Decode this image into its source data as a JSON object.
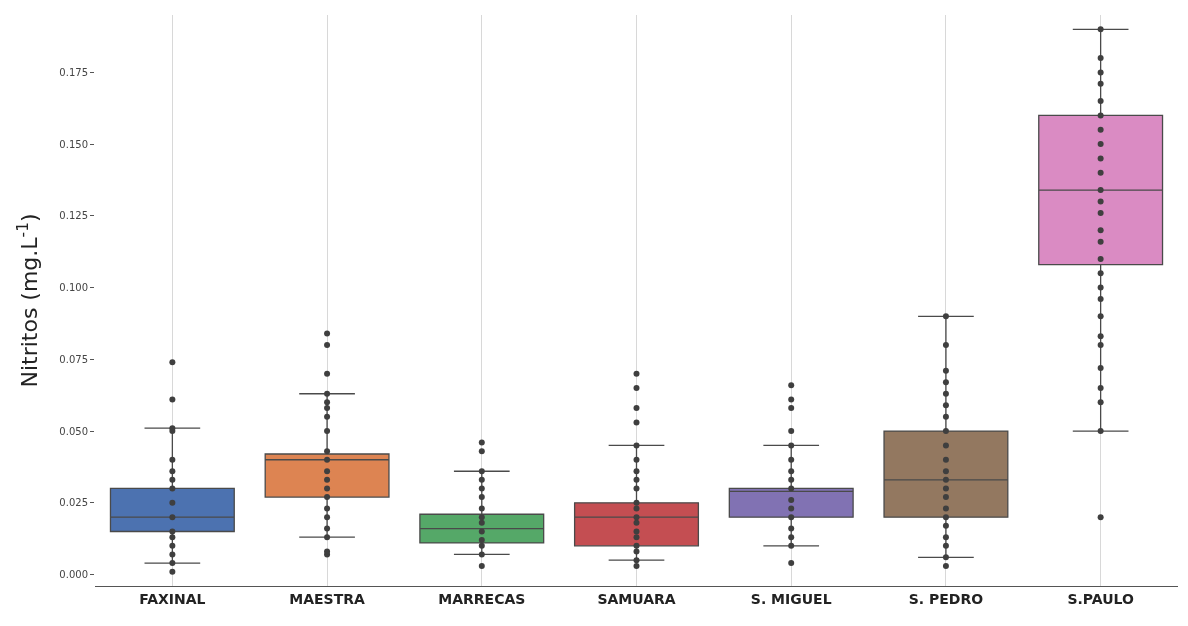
{
  "chart_data": {
    "type": "box",
    "ylabel": "Nitritos (mg.L$^{-1}$)",
    "categories": [
      "FAXINAL",
      "MAESTRA",
      "MARRECAS",
      "SAMUARA",
      "S. MIGUEL",
      "S. PEDRO",
      "S.PAULO"
    ],
    "colors": [
      "#4c72b0",
      "#dd8452",
      "#55a868",
      "#c44e52",
      "#8172b3",
      "#937860",
      "#da8bc3"
    ],
    "boxes": [
      {
        "low": 0.004,
        "q1": 0.015,
        "median": 0.02,
        "q3": 0.03,
        "high": 0.051
      },
      {
        "low": 0.013,
        "q1": 0.027,
        "median": 0.04,
        "q3": 0.042,
        "high": 0.063
      },
      {
        "low": 0.007,
        "q1": 0.011,
        "median": 0.016,
        "q3": 0.021,
        "high": 0.036
      },
      {
        "low": 0.005,
        "q1": 0.01,
        "median": 0.02,
        "q3": 0.025,
        "high": 0.045
      },
      {
        "low": 0.01,
        "q1": 0.02,
        "median": 0.029,
        "q3": 0.03,
        "high": 0.045
      },
      {
        "low": 0.006,
        "q1": 0.02,
        "median": 0.033,
        "q3": 0.05,
        "high": 0.09
      },
      {
        "low": 0.05,
        "q1": 0.108,
        "median": 0.134,
        "q3": 0.16,
        "high": 0.19
      }
    ],
    "series": [
      {
        "type": "scatter",
        "color": "#3f3f3f",
        "x": [
          "FAXINAL",
          "FAXINAL",
          "FAXINAL",
          "FAXINAL",
          "FAXINAL",
          "FAXINAL",
          "FAXINAL",
          "FAXINAL",
          "FAXINAL",
          "FAXINAL",
          "FAXINAL",
          "FAXINAL",
          "FAXINAL",
          "FAXINAL",
          "FAXINAL",
          "FAXINAL",
          "MAESTRA",
          "MAESTRA",
          "MAESTRA",
          "MAESTRA",
          "MAESTRA",
          "MAESTRA",
          "MAESTRA",
          "MAESTRA",
          "MAESTRA",
          "MAESTRA",
          "MAESTRA",
          "MAESTRA",
          "MAESTRA",
          "MAESTRA",
          "MAESTRA",
          "MAESTRA",
          "MAESTRA",
          "MAESTRA",
          "MAESTRA",
          "MAESTRA",
          "MARRECAS",
          "MARRECAS",
          "MARRECAS",
          "MARRECAS",
          "MARRECAS",
          "MARRECAS",
          "MARRECAS",
          "MARRECAS",
          "MARRECAS",
          "MARRECAS",
          "MARRECAS",
          "MARRECAS",
          "MARRECAS",
          "MARRECAS",
          "SAMUARA",
          "SAMUARA",
          "SAMUARA",
          "SAMUARA",
          "SAMUARA",
          "SAMUARA",
          "SAMUARA",
          "SAMUARA",
          "SAMUARA",
          "SAMUARA",
          "SAMUARA",
          "SAMUARA",
          "SAMUARA",
          "SAMUARA",
          "SAMUARA",
          "SAMUARA",
          "SAMUARA",
          "SAMUARA",
          "SAMUARA",
          "S. MIGUEL",
          "S. MIGUEL",
          "S. MIGUEL",
          "S. MIGUEL",
          "S. MIGUEL",
          "S. MIGUEL",
          "S. MIGUEL",
          "S. MIGUEL",
          "S. MIGUEL",
          "S. MIGUEL",
          "S. MIGUEL",
          "S. MIGUEL",
          "S. MIGUEL",
          "S. MIGUEL",
          "S. MIGUEL",
          "S. MIGUEL",
          "S. PEDRO",
          "S. PEDRO",
          "S. PEDRO",
          "S. PEDRO",
          "S. PEDRO",
          "S. PEDRO",
          "S. PEDRO",
          "S. PEDRO",
          "S. PEDRO",
          "S. PEDRO",
          "S. PEDRO",
          "S. PEDRO",
          "S. PEDRO",
          "S. PEDRO",
          "S. PEDRO",
          "S. PEDRO",
          "S. PEDRO",
          "S. PEDRO",
          "S. PEDRO",
          "S. PEDRO",
          "S. PEDRO",
          "S.PAULO",
          "S.PAULO",
          "S.PAULO",
          "S.PAULO",
          "S.PAULO",
          "S.PAULO",
          "S.PAULO",
          "S.PAULO",
          "S.PAULO",
          "S.PAULO",
          "S.PAULO",
          "S.PAULO",
          "S.PAULO",
          "S.PAULO",
          "S.PAULO",
          "S.PAULO",
          "S.PAULO",
          "S.PAULO",
          "S.PAULO",
          "S.PAULO",
          "S.PAULO",
          "S.PAULO",
          "S.PAULO",
          "S.PAULO",
          "S.PAULO",
          "S.PAULO",
          "S.PAULO"
        ],
        "values": [
          0.001,
          0.004,
          0.007,
          0.01,
          0.013,
          0.015,
          0.02,
          0.025,
          0.03,
          0.033,
          0.036,
          0.04,
          0.05,
          0.051,
          0.061,
          0.074,
          0.007,
          0.008,
          0.013,
          0.016,
          0.02,
          0.023,
          0.027,
          0.03,
          0.033,
          0.036,
          0.04,
          0.043,
          0.05,
          0.055,
          0.058,
          0.06,
          0.063,
          0.07,
          0.08,
          0.084,
          0.003,
          0.007,
          0.01,
          0.012,
          0.015,
          0.018,
          0.02,
          0.023,
          0.027,
          0.03,
          0.033,
          0.036,
          0.043,
          0.046,
          0.003,
          0.005,
          0.008,
          0.01,
          0.013,
          0.015,
          0.018,
          0.02,
          0.023,
          0.025,
          0.03,
          0.033,
          0.036,
          0.04,
          0.045,
          0.053,
          0.058,
          0.065,
          0.07,
          0.004,
          0.01,
          0.013,
          0.016,
          0.02,
          0.023,
          0.026,
          0.03,
          0.033,
          0.036,
          0.04,
          0.045,
          0.05,
          0.058,
          0.061,
          0.066,
          0.003,
          0.006,
          0.01,
          0.013,
          0.017,
          0.02,
          0.023,
          0.027,
          0.03,
          0.033,
          0.036,
          0.04,
          0.045,
          0.05,
          0.055,
          0.059,
          0.063,
          0.067,
          0.071,
          0.08,
          0.09,
          0.02,
          0.05,
          0.06,
          0.065,
          0.072,
          0.08,
          0.083,
          0.09,
          0.096,
          0.1,
          0.105,
          0.11,
          0.116,
          0.12,
          0.126,
          0.13,
          0.134,
          0.14,
          0.145,
          0.15,
          0.155,
          0.16,
          0.165,
          0.171,
          0.175,
          0.18,
          0.19
        ]
      }
    ],
    "marker": "circle",
    "ylim": [
      -0.004,
      0.195
    ],
    "yticks": [
      {
        "value": 0,
        "label": "0.000"
      },
      {
        "value": 0.025,
        "label": "0.025"
      },
      {
        "value": 0.05,
        "label": "0.050"
      },
      {
        "value": 0.075,
        "label": "0.075"
      },
      {
        "value": 0.1,
        "label": "0.100"
      },
      {
        "value": 0.125,
        "label": "0.125"
      },
      {
        "value": 0.15,
        "label": "0.150"
      },
      {
        "value": 0.175,
        "label": "0.175"
      }
    ],
    "grid": "x",
    "legend": false
  }
}
